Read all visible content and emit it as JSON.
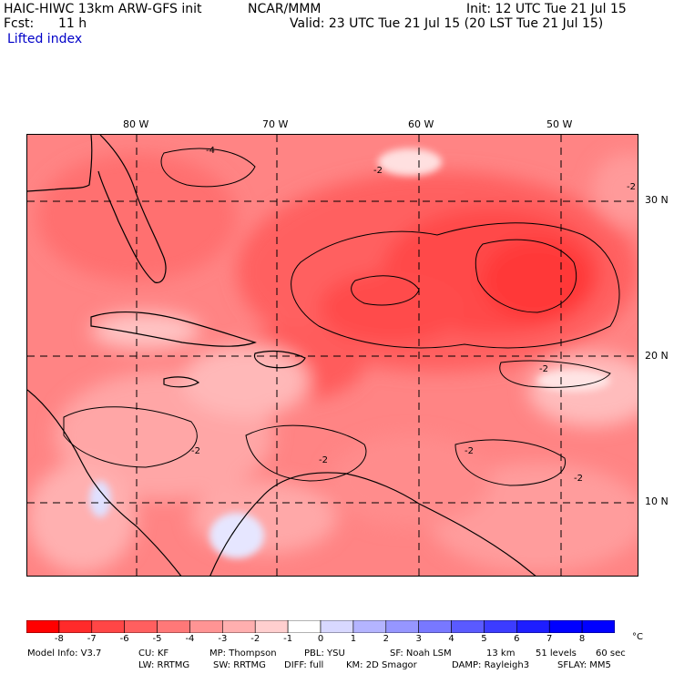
{
  "header": {
    "model_title": "HAIC-HIWC 13km ARW-GFS init",
    "org": "NCAR/MMM",
    "init": "Init: 12 UTC Tue 21 Jul 15",
    "fcst_label": "Fcst:",
    "fcst_value": "11 h",
    "valid": "Valid: 23 UTC Tue 21 Jul 15 (20 LST Tue 21 Jul 15)",
    "field": "Lifted index"
  },
  "axes": {
    "lon_labels": [
      "80 W",
      "70 W",
      "60 W",
      "50 W"
    ],
    "lat_labels": [
      "30 N",
      "20 N",
      "10 N"
    ]
  },
  "legend": {
    "unit": "°C",
    "levels": [
      "-8",
      "-7",
      "-6",
      "-5",
      "-4",
      "-3",
      "-2",
      "-1",
      "0",
      "1",
      "2",
      "3",
      "4",
      "5",
      "6",
      "7",
      "8"
    ],
    "colors": [
      "#ff0000",
      "#ff2a2a",
      "#ff4646",
      "#ff5f5f",
      "#ff7878",
      "#ff9494",
      "#ffafaf",
      "#ffcfcf",
      "#ffffff",
      "#d8d8ff",
      "#b4b4ff",
      "#9696ff",
      "#7878ff",
      "#5a5aff",
      "#3c3cff",
      "#1e1eff",
      "#0000ff"
    ]
  },
  "map": {
    "contour_labels": [
      "-4",
      "-2",
      "-2",
      "-2",
      "-2",
      "-2",
      "-2",
      "-2"
    ]
  },
  "footer": {
    "line1": [
      "Model Info: V3.7",
      "CU: KF",
      "MP: Thompson",
      "PBL: YSU",
      "SF: Noah LSM",
      "13 km",
      "51 levels",
      "60 sec"
    ],
    "line2": [
      "LW: RRTMG",
      "SW: RRTMG",
      "DIFF: full",
      "KM: 2D Smagor",
      "DAMP: Rayleigh3",
      "SFLAY: MM5"
    ]
  }
}
